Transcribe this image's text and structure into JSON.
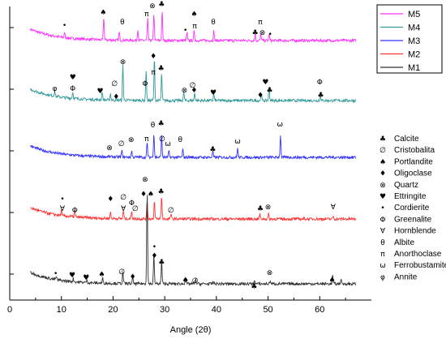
{
  "chart_data": {
    "type": "line",
    "xlabel": "Angle (2θ)",
    "xlim": [
      0,
      70
    ],
    "x_ticks": [
      0,
      10,
      20,
      30,
      40,
      50,
      60
    ],
    "series": [
      {
        "name": "M5",
        "color": "#ff33ff",
        "baseline": 320,
        "peaks": [
          [
            10.6,
            6
          ],
          [
            18.2,
            28
          ],
          [
            21.2,
            10
          ],
          [
            24.8,
            14
          ],
          [
            26.7,
            27
          ],
          [
            27.9,
            34
          ],
          [
            29.5,
            36
          ],
          [
            34.3,
            10
          ],
          [
            35.7,
            12
          ],
          [
            39.5,
            12
          ],
          [
            47.5,
            8
          ],
          [
            48.6,
            8
          ],
          [
            50.2,
            8
          ]
        ]
      },
      {
        "name": "M4",
        "color": "#339999",
        "baseline": 246,
        "peaks": [
          [
            8.7,
            6
          ],
          [
            12.2,
            8
          ],
          [
            17.9,
            10
          ],
          [
            19.5,
            8
          ],
          [
            21.9,
            44
          ],
          [
            26.4,
            38
          ],
          [
            28.0,
            52
          ],
          [
            29.4,
            34
          ],
          [
            33.7,
            10
          ],
          [
            35.8,
            10
          ],
          [
            39.5,
            8
          ],
          [
            48.7,
            8
          ],
          [
            50.2,
            16
          ],
          [
            60.1,
            8
          ]
        ]
      },
      {
        "name": "M3",
        "color": "#3333ff",
        "baseline": 176,
        "peaks": [
          [
            21.7,
            8
          ],
          [
            23.6,
            8
          ],
          [
            26.6,
            18
          ],
          [
            27.9,
            30
          ],
          [
            29.4,
            28
          ],
          [
            30.8,
            8
          ],
          [
            33.5,
            10
          ],
          [
            39.3,
            8
          ],
          [
            44.1,
            12
          ],
          [
            52.4,
            28
          ]
        ]
      },
      {
        "name": "M2",
        "color": "#ff3333",
        "baseline": 100,
        "peaks": [
          [
            10.0,
            6
          ],
          [
            12.6,
            8
          ],
          [
            19.5,
            8
          ],
          [
            22.0,
            10
          ],
          [
            23.6,
            10
          ],
          [
            26.6,
            22
          ],
          [
            28.0,
            22
          ],
          [
            29.4,
            28
          ],
          [
            31.2,
            6
          ],
          [
            48.4,
            6
          ],
          [
            50.1,
            6
          ],
          [
            62.6,
            4
          ]
        ]
      },
      {
        "name": "M1",
        "color": "#333333",
        "baseline": 20,
        "peaks": [
          [
            9.0,
            4
          ],
          [
            12.3,
            4
          ],
          [
            14.9,
            3
          ],
          [
            18.0,
            6
          ],
          [
            21.9,
            14
          ],
          [
            23.8,
            8
          ],
          [
            26.6,
            118
          ],
          [
            27.9,
            36
          ],
          [
            29.4,
            28
          ],
          [
            34.0,
            8
          ],
          [
            36.0,
            5
          ],
          [
            39.4,
            3
          ],
          [
            47.4,
            5
          ],
          [
            50.4,
            4
          ],
          [
            62.5,
            10
          ],
          [
            64.1,
            6
          ]
        ]
      }
    ],
    "legend_position": "top-right",
    "phases": [
      {
        "symbol": "♣",
        "name": "Calcite"
      },
      {
        "symbol": "∅",
        "name": "Cristobalita"
      },
      {
        "symbol": "♠",
        "name": "Portlandite"
      },
      {
        "symbol": "♦",
        "name": "Oligoclase"
      },
      {
        "symbol": "⊗",
        "name": "Quartz"
      },
      {
        "symbol": "♥",
        "name": "Ettringite"
      },
      {
        "symbol": "•",
        "name": "Cordierite"
      },
      {
        "symbol": "Φ",
        "name": "Greenalite"
      },
      {
        "symbol": "∀",
        "name": "Hornblende"
      },
      {
        "symbol": "θ",
        "name": "Albite"
      },
      {
        "symbol": "π",
        "name": "Anorthoclase"
      },
      {
        "symbol": "ω",
        "name": "Ferrobustamite"
      },
      {
        "symbol": "φ",
        "name": "Annite"
      }
    ],
    "peak_markers": [
      {
        "x": 10.6,
        "y": 336,
        "s": "•"
      },
      {
        "x": 18.1,
        "y": 352,
        "s": "♠"
      },
      {
        "x": 21.8,
        "y": 340,
        "s": "θ"
      },
      {
        "x": 26.5,
        "y": 350,
        "s": "π"
      },
      {
        "x": 27.8,
        "y": 370,
        "s": "θ"
      },
      {
        "x": 27.6,
        "y": 360,
        "s": "⊗"
      },
      {
        "x": 29.4,
        "y": 362,
        "s": "♣"
      },
      {
        "x": 34.0,
        "y": 330,
        "s": "•"
      },
      {
        "x": 35.7,
        "y": 350,
        "s": "♠"
      },
      {
        "x": 35.8,
        "y": 335,
        "s": "π"
      },
      {
        "x": 39.4,
        "y": 340,
        "s": "θ"
      },
      {
        "x": 48.5,
        "y": 340,
        "s": "π"
      },
      {
        "x": 47.5,
        "y": 327,
        "s": "♣"
      },
      {
        "x": 48.9,
        "y": 327,
        "s": "⊗"
      },
      {
        "x": 50.4,
        "y": 325,
        "s": "•"
      },
      {
        "x": 8.7,
        "y": 258,
        "s": "φ"
      },
      {
        "x": 12.2,
        "y": 272,
        "s": "♥"
      },
      {
        "x": 12.2,
        "y": 258,
        "s": "Φ"
      },
      {
        "x": 17.5,
        "y": 255,
        "s": "♥"
      },
      {
        "x": 20.3,
        "y": 264,
        "s": "∅"
      },
      {
        "x": 21.9,
        "y": 291,
        "s": "⊗"
      },
      {
        "x": 20.6,
        "y": 248,
        "s": "♦"
      },
      {
        "x": 26.2,
        "y": 264,
        "s": "Φ"
      },
      {
        "x": 27.8,
        "y": 298,
        "s": "♦"
      },
      {
        "x": 29.3,
        "y": 283,
        "s": "♣"
      },
      {
        "x": 27.8,
        "y": 278,
        "s": "π"
      },
      {
        "x": 33.8,
        "y": 256,
        "s": "⊗"
      },
      {
        "x": 35.4,
        "y": 262,
        "s": "∅"
      },
      {
        "x": 35.7,
        "y": 256,
        "s": "♦"
      },
      {
        "x": 39.4,
        "y": 253,
        "s": "♥"
      },
      {
        "x": 48.5,
        "y": 250,
        "s": "♦"
      },
      {
        "x": 49.5,
        "y": 266,
        "s": "♥"
      },
      {
        "x": 50.3,
        "y": 256,
        "s": "♣"
      },
      {
        "x": 60.0,
        "y": 266,
        "s": "Φ"
      },
      {
        "x": 60.2,
        "y": 250,
        "s": "♣"
      },
      {
        "x": 19.3,
        "y": 185,
        "s": "⊗"
      },
      {
        "x": 21.6,
        "y": 190,
        "s": "∅"
      },
      {
        "x": 23.5,
        "y": 195,
        "s": "⊗"
      },
      {
        "x": 26.5,
        "y": 196,
        "s": "π"
      },
      {
        "x": 27.7,
        "y": 213,
        "s": "θ"
      },
      {
        "x": 29.3,
        "y": 215,
        "s": "♣"
      },
      {
        "x": 30.6,
        "y": 190,
        "s": "ω"
      },
      {
        "x": 29.5,
        "y": 196,
        "s": "∅"
      },
      {
        "x": 33.0,
        "y": 195,
        "s": "θ"
      },
      {
        "x": 39.3,
        "y": 183,
        "s": "♣"
      },
      {
        "x": 44.1,
        "y": 193,
        "s": "ω"
      },
      {
        "x": 52.3,
        "y": 214,
        "s": "ω"
      },
      {
        "x": 10.2,
        "y": 110,
        "s": "∀"
      },
      {
        "x": 10.2,
        "y": 122,
        "s": "•"
      },
      {
        "x": 12.6,
        "y": 108,
        "s": "Φ"
      },
      {
        "x": 22.0,
        "y": 110,
        "s": "∀"
      },
      {
        "x": 19.5,
        "y": 122,
        "s": "♦"
      },
      {
        "x": 22.0,
        "y": 124,
        "s": "∅"
      },
      {
        "x": 23.6,
        "y": 117,
        "s": "Φ"
      },
      {
        "x": 24.3,
        "y": 110,
        "s": "∅"
      },
      {
        "x": 25.9,
        "y": 128,
        "s": "♦"
      },
      {
        "x": 27.3,
        "y": 128,
        "s": "♠"
      },
      {
        "x": 29.3,
        "y": 131,
        "s": "♣"
      },
      {
        "x": 31.2,
        "y": 108,
        "s": "∅"
      },
      {
        "x": 48.5,
        "y": 110,
        "s": "♣"
      },
      {
        "x": 50.0,
        "y": 112,
        "s": "⊗"
      },
      {
        "x": 62.6,
        "y": 112,
        "s": "∀"
      },
      {
        "x": 26.2,
        "y": 146,
        "s": "⊗"
      },
      {
        "x": 28.0,
        "y": 63,
        "s": "•"
      },
      {
        "x": 28.0,
        "y": 52,
        "s": "♦"
      },
      {
        "x": 29.4,
        "y": 44,
        "s": "♣"
      },
      {
        "x": 8.9,
        "y": 30,
        "s": "•"
      },
      {
        "x": 12.1,
        "y": 28,
        "s": "♥"
      },
      {
        "x": 14.8,
        "y": 25,
        "s": "♥"
      },
      {
        "x": 17.8,
        "y": 29,
        "s": "♠"
      },
      {
        "x": 21.7,
        "y": 32,
        "s": "∅"
      },
      {
        "x": 23.8,
        "y": 26,
        "s": "♦"
      },
      {
        "x": 34.0,
        "y": 22,
        "s": "♠"
      },
      {
        "x": 35.9,
        "y": 21,
        "s": "∅"
      },
      {
        "x": 47.3,
        "y": 14,
        "s": "♣"
      },
      {
        "x": 50.3,
        "y": 31,
        "s": "⊗"
      },
      {
        "x": 62.4,
        "y": 22,
        "s": "♠"
      }
    ]
  }
}
